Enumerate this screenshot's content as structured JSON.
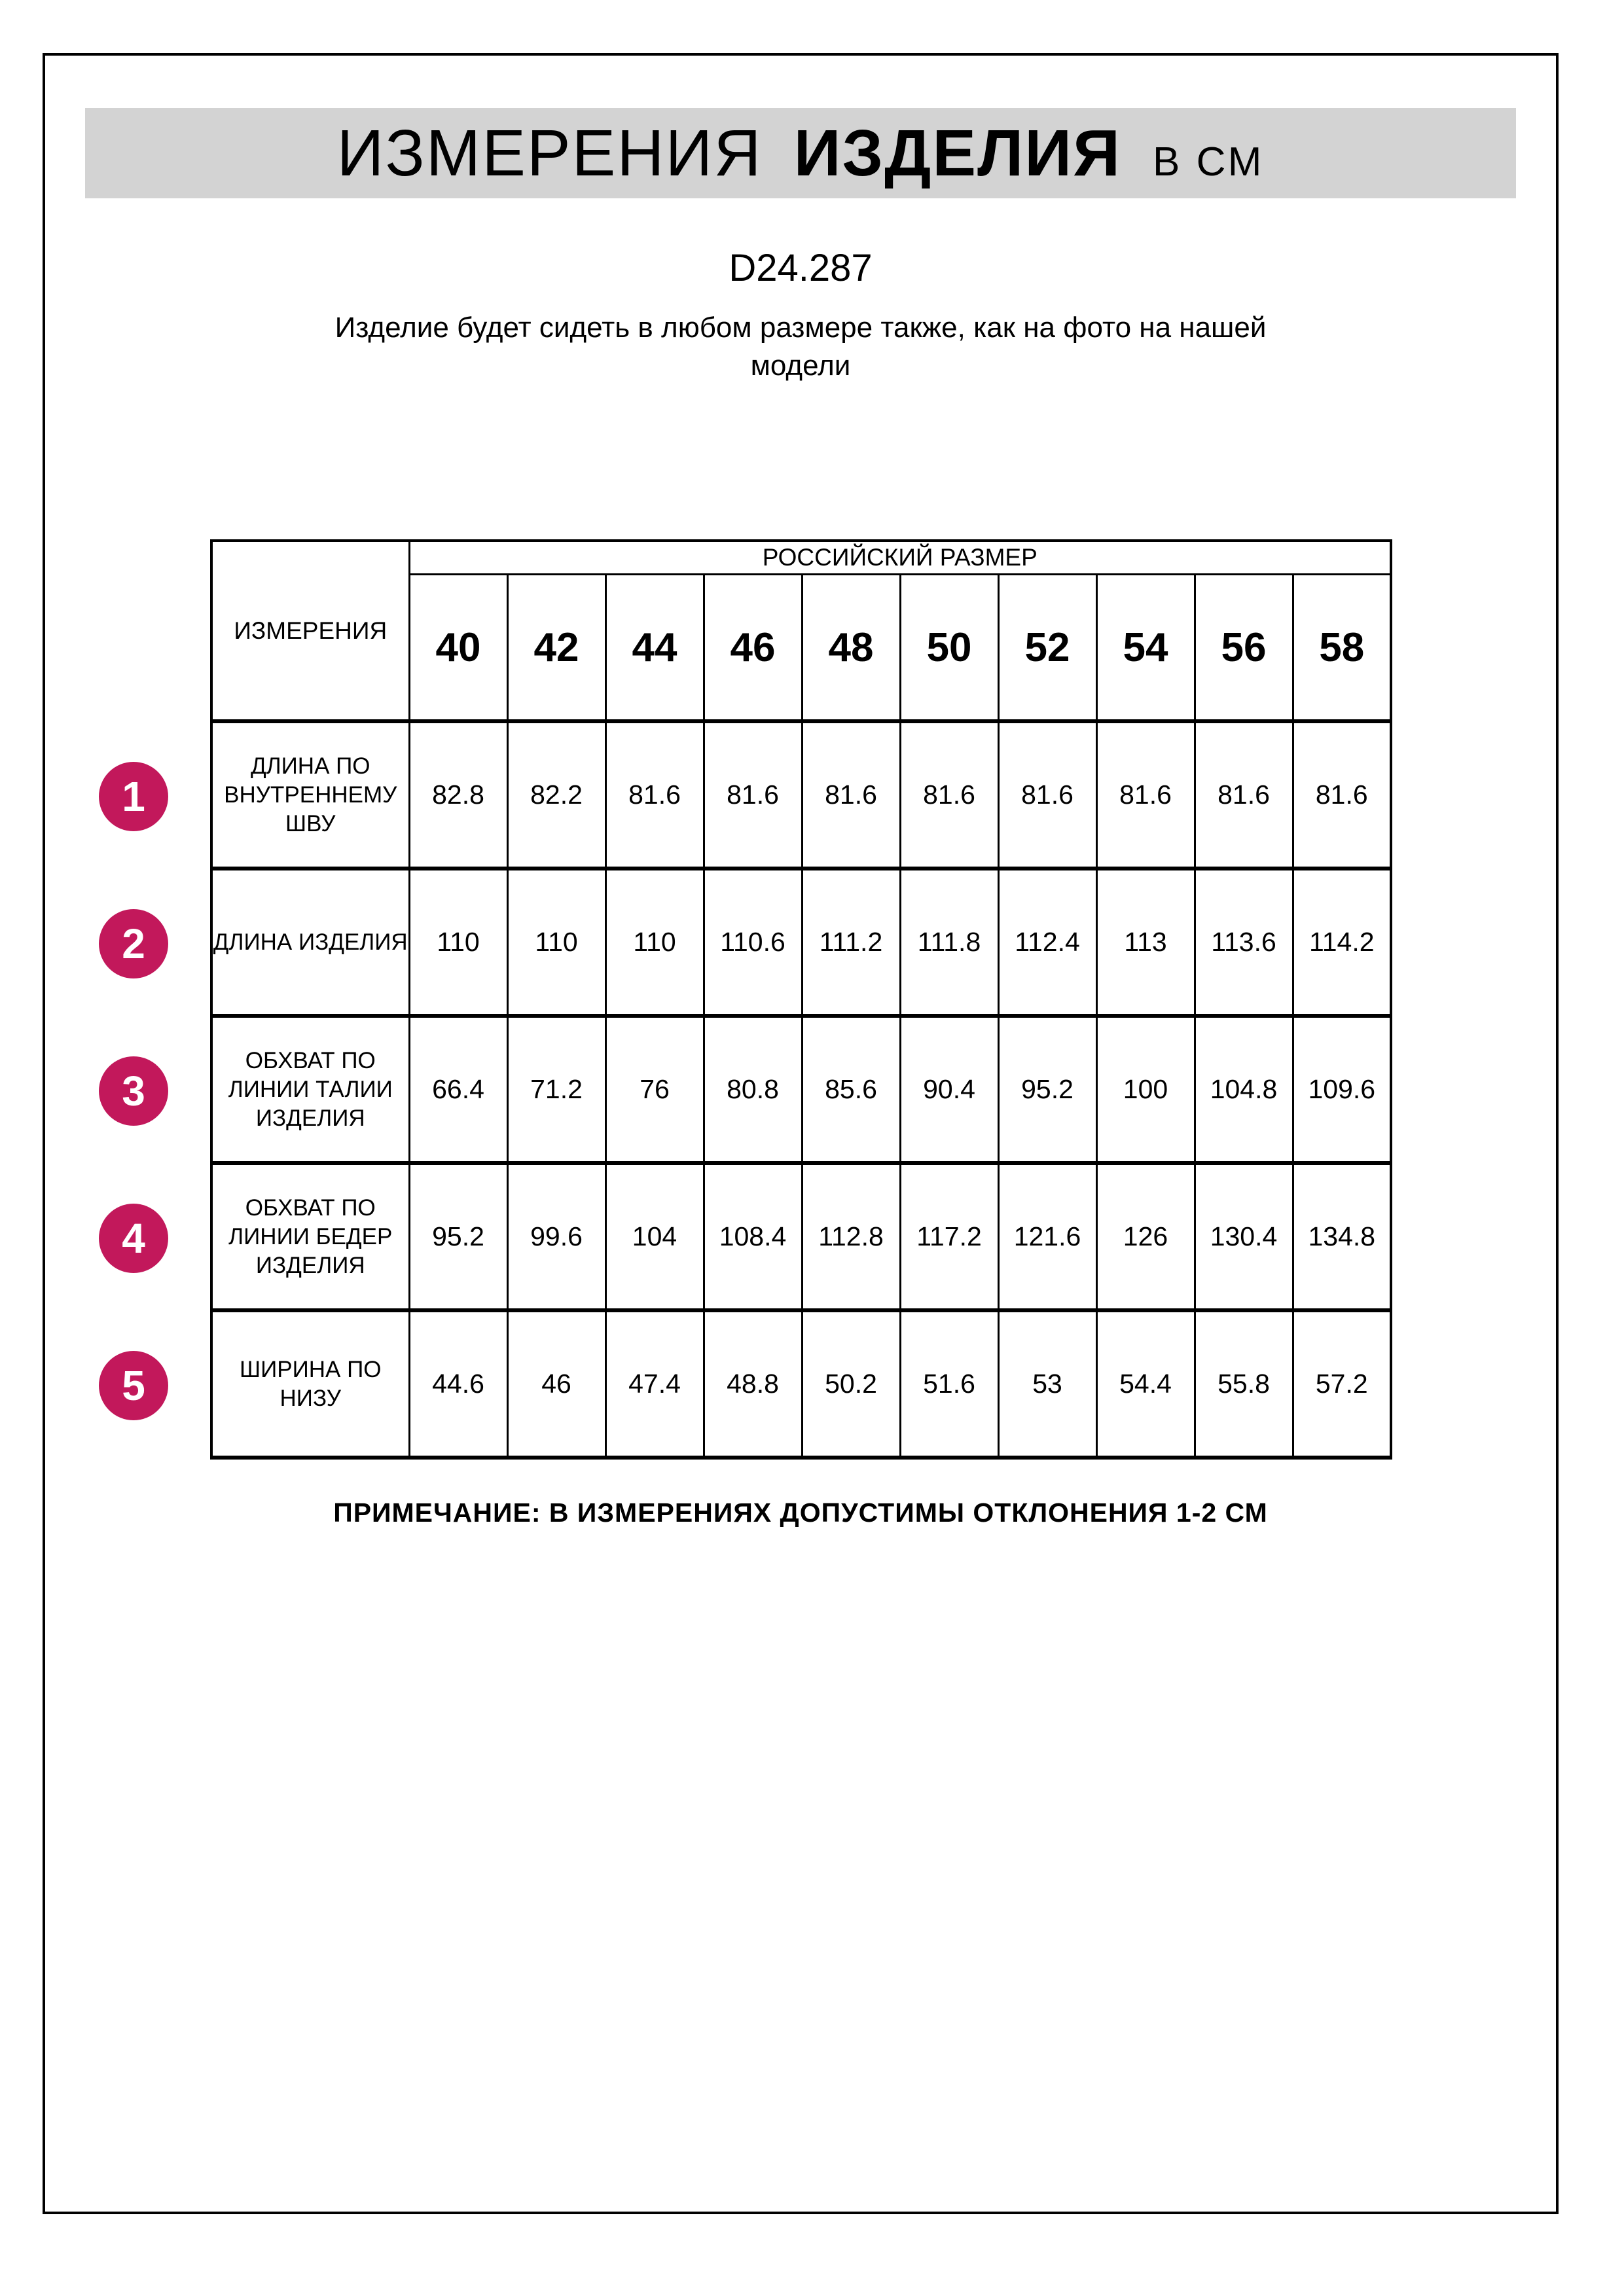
{
  "banner": {
    "title_regular": "ИЗМЕРЕНИЯ",
    "title_bold": "ИЗДЕЛИЯ",
    "title_units": "В СМ",
    "bg_color": "#d3d3d3"
  },
  "product_code": "D24.287",
  "description_lines": [
    "Изделие будет сидеть в любом размере также, как на фото на нашей",
    "модели"
  ],
  "note": "ПРИМЕЧАНИЕ: В ИЗМЕРЕНИЯХ ДОПУСТИМЫ ОТКЛОНЕНИЯ 1-2 СМ",
  "table": {
    "corner_label": "ИЗМЕРЕНИЯ",
    "group_header": "РОССИЙСКИЙ РАЗМЕР",
    "sizes": [
      "40",
      "42",
      "44",
      "46",
      "48",
      "50",
      "52",
      "54",
      "56",
      "58"
    ],
    "badge_color": "#c2185b",
    "rows": [
      {
        "num": "1",
        "label": "ДЛИНА ПО ВНУТРЕННЕМУ ШВУ",
        "values": [
          "82.8",
          "82.2",
          "81.6",
          "81.6",
          "81.6",
          "81.6",
          "81.6",
          "81.6",
          "81.6",
          "81.6"
        ]
      },
      {
        "num": "2",
        "label": "ДЛИНА ИЗДЕЛИЯ",
        "values": [
          "110",
          "110",
          "110",
          "110.6",
          "111.2",
          "111.8",
          "112.4",
          "113",
          "113.6",
          "114.2"
        ]
      },
      {
        "num": "3",
        "label": "ОБХВАТ ПО ЛИНИИ ТАЛИИ ИЗДЕЛИЯ",
        "values": [
          "66.4",
          "71.2",
          "76",
          "80.8",
          "85.6",
          "90.4",
          "95.2",
          "100",
          "104.8",
          "109.6"
        ]
      },
      {
        "num": "4",
        "label": "ОБХВАТ ПО ЛИНИИ БЕДЕР ИЗДЕЛИЯ",
        "values": [
          "95.2",
          "99.6",
          "104",
          "108.4",
          "112.8",
          "117.2",
          "121.6",
          "126",
          "130.4",
          "134.8"
        ]
      },
      {
        "num": "5",
        "label": "ШИРИНА ПО НИЗУ",
        "values": [
          "44.6",
          "46",
          "47.4",
          "48.8",
          "50.2",
          "51.6",
          "53",
          "54.4",
          "55.8",
          "57.2"
        ]
      }
    ]
  }
}
